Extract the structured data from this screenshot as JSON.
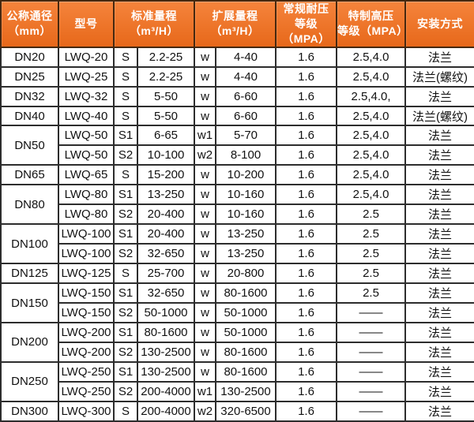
{
  "colors": {
    "header_gradient_top": "#f5843c",
    "header_gradient_bottom": "#e7681a",
    "header_text": "#ffffff",
    "header_border": "#46280f",
    "body_border": "#2d2d2d",
    "body_text": "#111111",
    "body_background": "#ffffff"
  },
  "table": {
    "headers": {
      "diameter": {
        "line1": "公称通径",
        "line2": "（mm）"
      },
      "model": {
        "line1": "型号",
        "line2": ""
      },
      "standard_range": {
        "line1": "标准量程",
        "line2": "（m³/H）"
      },
      "extended_range": {
        "line1": "扩展量程",
        "line2": "（m³/H）"
      },
      "normal_pressure": {
        "line1": "常规耐压",
        "line2": "等级（MPA）"
      },
      "high_pressure": {
        "line1": "特制高压",
        "line2": "等级（MPA）"
      },
      "installation": {
        "line1": "安装方式",
        "line2": ""
      }
    },
    "rows": [
      {
        "dn": "DN20",
        "dn_rowspan": 1,
        "model": "LWQ-20",
        "s": "S",
        "std": "2.2-25",
        "w": "w",
        "ext": "4-40",
        "normal": "1.6",
        "high": "2.5,4.0",
        "install": "法兰"
      },
      {
        "dn": "DN25",
        "dn_rowspan": 1,
        "model": "LWQ-25",
        "s": "S",
        "std": "2.2-25",
        "w": "w",
        "ext": "4-40",
        "normal": "1.6",
        "high": "2.5,4.0",
        "install": "法兰(螺纹)"
      },
      {
        "dn": "DN32",
        "dn_rowspan": 1,
        "model": "LWQ-32",
        "s": "S",
        "std": "5-50",
        "w": "w",
        "ext": "6-60",
        "normal": "1.6",
        "high": "2.5,4.0,",
        "install": "法兰"
      },
      {
        "dn": "DN40",
        "dn_rowspan": 1,
        "model": "LWQ-40",
        "s": "S",
        "std": "5-50",
        "w": "w",
        "ext": "6-60",
        "normal": "1.6",
        "high": "2.5,4.0",
        "install": "法兰(螺纹)"
      },
      {
        "dn": "DN50",
        "dn_rowspan": 2,
        "model": "LWQ-50",
        "s": "S1",
        "std": "6-65",
        "w": "w1",
        "ext": "5-70",
        "normal": "1.6",
        "high": "2.5,4.0",
        "install": "法兰"
      },
      {
        "dn": "",
        "dn_rowspan": 0,
        "model": "LWQ-50",
        "s": "S2",
        "std": "10-100",
        "w": "w2",
        "ext": "8-100",
        "normal": "1.6",
        "high": "2.5,4.0",
        "install": "法兰"
      },
      {
        "dn": "DN65",
        "dn_rowspan": 1,
        "model": "LWQ-65",
        "s": "S",
        "std": "15-200",
        "w": "w",
        "ext": "10-200",
        "normal": "1.6",
        "high": "2.5,4.0",
        "install": "法兰"
      },
      {
        "dn": "DN80",
        "dn_rowspan": 2,
        "model": "LWQ-80",
        "s": "S1",
        "std": "13-250",
        "w": "w",
        "ext": "10-160",
        "normal": "1.6",
        "high": "2.5,4.0",
        "install": "法兰"
      },
      {
        "dn": "",
        "dn_rowspan": 0,
        "model": "LWQ-80",
        "s": "S2",
        "std": "20-400",
        "w": "w",
        "ext": "10-160",
        "normal": "1.6",
        "high": "2.5",
        "install": "法兰"
      },
      {
        "dn": "DN100",
        "dn_rowspan": 2,
        "model": "LWQ-100",
        "s": "S1",
        "std": "20-400",
        "w": "w",
        "ext": "13-250",
        "normal": "1.6",
        "high": "2.5",
        "install": "法兰"
      },
      {
        "dn": "",
        "dn_rowspan": 0,
        "model": "LWQ-100",
        "s": "S2",
        "std": "32-650",
        "w": "w",
        "ext": "13-250",
        "normal": "1.6",
        "high": "2.5",
        "install": "法兰"
      },
      {
        "dn": "DN125",
        "dn_rowspan": 1,
        "model": "LWQ-125",
        "s": "S",
        "std": "25-700",
        "w": "w",
        "ext": "20-800",
        "normal": "1.6",
        "high": "2.5",
        "install": "法兰"
      },
      {
        "dn": "DN150",
        "dn_rowspan": 2,
        "model": "LWQ-150",
        "s": "S1",
        "std": "32-650",
        "w": "w",
        "ext": "80-1600",
        "normal": "1.6",
        "high": "2.5",
        "install": "法兰"
      },
      {
        "dn": "",
        "dn_rowspan": 0,
        "model": "LWQ-150",
        "s": "S2",
        "std": "50-1000",
        "w": "w",
        "ext": "50-1000",
        "normal": "1.6",
        "high": "——",
        "install": "法兰"
      },
      {
        "dn": "DN200",
        "dn_rowspan": 2,
        "model": "LWQ-200",
        "s": "S1",
        "std": "80-1600",
        "w": "w",
        "ext": "50-1000",
        "normal": "1.6",
        "high": "——",
        "install": "法兰"
      },
      {
        "dn": "",
        "dn_rowspan": 0,
        "model": "LWQ-200",
        "s": "S2",
        "std": "130-2500",
        "w": "w",
        "ext": "80-1600",
        "normal": "1.6",
        "high": "——",
        "install": "法兰"
      },
      {
        "dn": "DN250",
        "dn_rowspan": 2,
        "model": "LWQ-250",
        "s": "S1",
        "std": "130-2500",
        "w": "w",
        "ext": "80-1600",
        "normal": "1.6",
        "high": "——",
        "install": "法兰"
      },
      {
        "dn": "",
        "dn_rowspan": 0,
        "model": "LWQ-250",
        "s": "S2",
        "std": "200-4000",
        "w": "w1",
        "ext": "130-2500",
        "normal": "1.6",
        "high": "——",
        "install": "法兰"
      },
      {
        "dn": "DN300",
        "dn_rowspan": 1,
        "model": "LWQ-300",
        "s": "S",
        "std": "200-4000",
        "w": "w2",
        "ext": "320-6500",
        "normal": "1.6",
        "high": "——",
        "install": "法兰"
      }
    ]
  }
}
